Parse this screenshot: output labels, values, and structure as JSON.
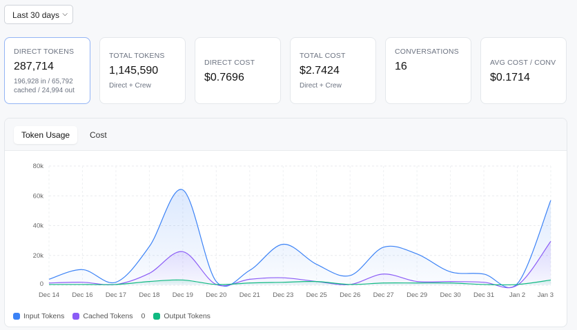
{
  "filter": {
    "range": "Last 30 days",
    "chevron_icon": "chevron-down-icon"
  },
  "stats": [
    {
      "label": "DIRECT TOKENS",
      "value": "287,714",
      "sub": "196,928 in / 65,792 cached / 24,994 out",
      "active": true
    },
    {
      "label": "TOTAL TOKENS",
      "value": "1,145,590",
      "sub": "Direct + Crew"
    },
    {
      "label": "DIRECT COST",
      "value": "$0.7696",
      "sub": ""
    },
    {
      "label": "TOTAL COST",
      "value": "$2.7424",
      "sub": "Direct + Crew"
    },
    {
      "label": "CONVERSATIONS",
      "value": "16",
      "sub": ""
    },
    {
      "label": "AVG COST / CONV",
      "value": "$0.1714",
      "sub": ""
    }
  ],
  "tabs": [
    {
      "label": "Token Usage",
      "selected": true
    },
    {
      "label": "Cost"
    }
  ],
  "legend_extra": "0",
  "chart_data": {
    "type": "area",
    "categories": [
      "Dec 14",
      "Dec 16",
      "Dec 17",
      "Dec 18",
      "Dec 19",
      "Dec 20",
      "Dec 21",
      "Dec 23",
      "Dec 25",
      "Dec 26",
      "Dec 27",
      "Dec 29",
      "Dec 30",
      "Dec 31",
      "Jan 2",
      "Jan 3"
    ],
    "ylim": [
      0,
      80000
    ],
    "yticks": [
      "0",
      "20k",
      "40k",
      "60k",
      "80k"
    ],
    "grid": true,
    "legend_placement": "bottom-left",
    "series": [
      {
        "name": "Input Tokens",
        "color": "#3b82f6",
        "values": [
          4000,
          10500,
          2000,
          26000,
          64000,
          2500,
          10000,
          27500,
          14000,
          6500,
          25500,
          21000,
          9000,
          7500,
          1000,
          57000
        ]
      },
      {
        "name": "Cached Tokens",
        "color": "#8b5cf6",
        "values": [
          1500,
          2000,
          500,
          8000,
          22500,
          500,
          4000,
          5000,
          2500,
          500,
          7500,
          2500,
          2500,
          2000,
          0,
          29500
        ]
      },
      {
        "name": "Output Tokens",
        "color": "#10b981",
        "values": [
          500,
          500,
          500,
          2500,
          3500,
          500,
          1500,
          2000,
          2500,
          500,
          1500,
          1500,
          1500,
          500,
          500,
          3500
        ]
      }
    ]
  }
}
